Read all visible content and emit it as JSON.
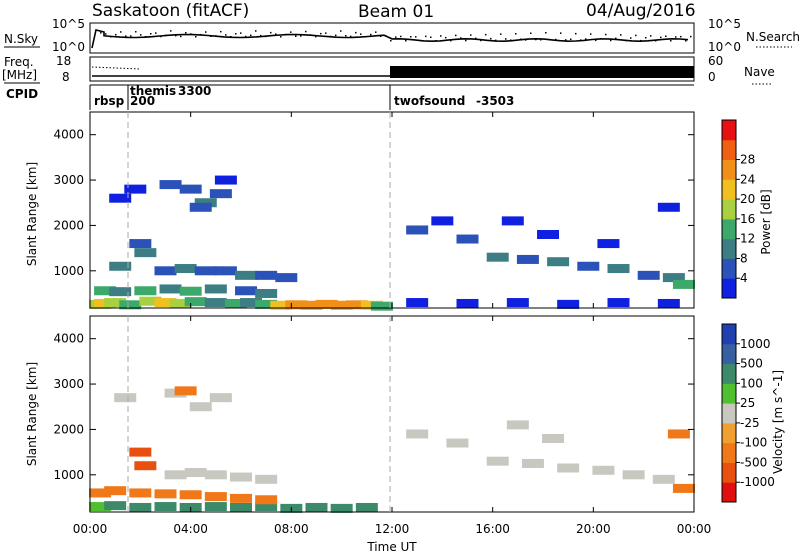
{
  "header": {
    "title": "Saskatoon (fitACF)",
    "beam": "Beam 01",
    "date": "04/Aug/2016"
  },
  "top_panels": {
    "nsky_label": "N.Sky",
    "nsearch_label": "N.Search",
    "nsky_ticks": [
      "10^5",
      "10^0"
    ],
    "nsearch_ticks": [
      "10^5",
      "10^0"
    ],
    "freq_label": "Freq.",
    "freq_unit": "[MHz]",
    "freq_ticks": [
      "18",
      "8"
    ],
    "nave_label": "Nave",
    "nave_ticks": [
      "60",
      "0"
    ],
    "cpid_label": "CPID",
    "cpid_segments": [
      {
        "name": "rbsp",
        "value": "200"
      },
      {
        "name": "themis",
        "value": "3300"
      },
      {
        "name": "twofsound",
        "value": "-3503"
      }
    ]
  },
  "chart_data": [
    {
      "type": "heatmap",
      "title": "Power",
      "ylabel": "Slant Range [km]",
      "xlabel": "",
      "xlim": [
        "00:00",
        "00:00"
      ],
      "ylim": [
        180,
        4500
      ],
      "yticks": [
        "1000",
        "2000",
        "3000",
        "4000"
      ],
      "colorbar": {
        "label": "Power [dB]",
        "ticks": [
          "4",
          "8",
          "12",
          "16",
          "20",
          "24",
          "28"
        ],
        "colors": [
          "#1020e0",
          "#2a52b8",
          "#3c7e84",
          "#3ca86a",
          "#a8d040",
          "#f0c020",
          "#f09018",
          "#f06010",
          "#e81010"
        ]
      },
      "cells": [
        {
          "t": 0.4,
          "r": 260,
          "p": 20
        },
        {
          "t": 0.6,
          "r": 280,
          "p": 24
        },
        {
          "t": 1.0,
          "r": 300,
          "p": 20
        },
        {
          "t": 1.6,
          "r": 250,
          "p": 16
        },
        {
          "t": 2.4,
          "r": 330,
          "p": 20
        },
        {
          "t": 3.0,
          "r": 300,
          "p": 24
        },
        {
          "t": 3.6,
          "r": 280,
          "p": 20
        },
        {
          "t": 4.2,
          "r": 320,
          "p": 16
        },
        {
          "t": 5.0,
          "r": 300,
          "p": 12
        },
        {
          "t": 5.8,
          "r": 280,
          "p": 16
        },
        {
          "t": 6.4,
          "r": 300,
          "p": 12
        },
        {
          "t": 7.0,
          "r": 260,
          "p": 16
        },
        {
          "t": 7.6,
          "r": 240,
          "p": 24
        },
        {
          "t": 8.2,
          "r": 250,
          "p": 28
        },
        {
          "t": 8.8,
          "r": 240,
          "p": 28
        },
        {
          "t": 9.4,
          "r": 260,
          "p": 28
        },
        {
          "t": 10.0,
          "r": 240,
          "p": 28
        },
        {
          "t": 10.6,
          "r": 250,
          "p": 28
        },
        {
          "t": 11.2,
          "r": 240,
          "p": 24
        },
        {
          "t": 11.6,
          "r": 220,
          "p": 16
        },
        {
          "t": 0.6,
          "r": 560,
          "p": 16
        },
        {
          "t": 1.2,
          "r": 540,
          "p": 12
        },
        {
          "t": 2.2,
          "r": 560,
          "p": 16
        },
        {
          "t": 3.2,
          "r": 600,
          "p": 12
        },
        {
          "t": 4.0,
          "r": 550,
          "p": 16
        },
        {
          "t": 5.0,
          "r": 600,
          "p": 12
        },
        {
          "t": 6.2,
          "r": 560,
          "p": 8
        },
        {
          "t": 7.0,
          "r": 500,
          "p": 12
        },
        {
          "t": 3.0,
          "r": 1000,
          "p": 8
        },
        {
          "t": 3.8,
          "r": 1050,
          "p": 12
        },
        {
          "t": 4.6,
          "r": 1000,
          "p": 8
        },
        {
          "t": 5.4,
          "r": 1000,
          "p": 8
        },
        {
          "t": 6.2,
          "r": 900,
          "p": 12
        },
        {
          "t": 7.0,
          "r": 900,
          "p": 8
        },
        {
          "t": 7.8,
          "r": 850,
          "p": 8
        },
        {
          "t": 1.2,
          "r": 1100,
          "p": 12
        },
        {
          "t": 2.2,
          "r": 1400,
          "p": 12
        },
        {
          "t": 2.0,
          "r": 1600,
          "p": 8
        },
        {
          "t": 1.2,
          "r": 2600,
          "p": 4
        },
        {
          "t": 1.8,
          "r": 2800,
          "p": 4
        },
        {
          "t": 3.2,
          "r": 2900,
          "p": 8
        },
        {
          "t": 4.0,
          "r": 2800,
          "p": 8
        },
        {
          "t": 4.6,
          "r": 2500,
          "p": 12
        },
        {
          "t": 5.2,
          "r": 2700,
          "p": 8
        },
        {
          "t": 5.4,
          "r": 3000,
          "p": 4
        },
        {
          "t": 4.4,
          "r": 2400,
          "p": 8
        },
        {
          "t": 13.0,
          "r": 1900,
          "p": 8
        },
        {
          "t": 14.0,
          "r": 2100,
          "p": 4
        },
        {
          "t": 15.0,
          "r": 1700,
          "p": 8
        },
        {
          "t": 16.2,
          "r": 1300,
          "p": 12
        },
        {
          "t": 17.4,
          "r": 1250,
          "p": 8
        },
        {
          "t": 18.6,
          "r": 1200,
          "p": 12
        },
        {
          "t": 19.8,
          "r": 1100,
          "p": 8
        },
        {
          "t": 21.0,
          "r": 1050,
          "p": 12
        },
        {
          "t": 22.2,
          "r": 900,
          "p": 8
        },
        {
          "t": 23.2,
          "r": 850,
          "p": 12
        },
        {
          "t": 23.6,
          "r": 700,
          "p": 16
        },
        {
          "t": 16.8,
          "r": 2100,
          "p": 4
        },
        {
          "t": 18.2,
          "r": 1800,
          "p": 4
        },
        {
          "t": 20.6,
          "r": 1600,
          "p": 4
        },
        {
          "t": 23.0,
          "r": 2400,
          "p": 4
        },
        {
          "t": 13.0,
          "r": 300,
          "p": 4
        },
        {
          "t": 15.0,
          "r": 280,
          "p": 4
        },
        {
          "t": 17.0,
          "r": 300,
          "p": 4
        },
        {
          "t": 19.0,
          "r": 260,
          "p": 4
        },
        {
          "t": 21.0,
          "r": 300,
          "p": 4
        },
        {
          "t": 23.0,
          "r": 280,
          "p": 4
        }
      ]
    },
    {
      "type": "heatmap",
      "title": "Velocity",
      "ylabel": "Slant Range [km]",
      "xlabel": "Time UT",
      "xlim": [
        "00:00",
        "00:00"
      ],
      "ylim": [
        180,
        4500
      ],
      "xticks": [
        "00:00",
        "04:00",
        "08:00",
        "12:00",
        "16:00",
        "20:00",
        "00:00"
      ],
      "yticks": [
        "1000",
        "2000",
        "3000",
        "4000"
      ],
      "colorbar": {
        "label": "Velocity [m s^-1]",
        "ticks": [
          "1000",
          "500",
          "100",
          "25",
          "-25",
          "-100",
          "-500",
          "-1000"
        ],
        "colors": [
          "#2040b0",
          "#3860a0",
          "#3c8a6a",
          "#50c030",
          "#c8c8c0",
          "#f0a030",
          "#f07818",
          "#e85010",
          "#e01010"
        ]
      },
      "cells": [
        {
          "t": 0.4,
          "r": 300,
          "v": 25
        },
        {
          "t": 1.0,
          "r": 320,
          "v": 100
        },
        {
          "t": 2.0,
          "r": 280,
          "v": 100
        },
        {
          "t": 3.0,
          "r": 300,
          "v": 100
        },
        {
          "t": 4.0,
          "r": 280,
          "v": 100
        },
        {
          "t": 5.0,
          "r": 300,
          "v": 100
        },
        {
          "t": 6.0,
          "r": 280,
          "v": 100
        },
        {
          "t": 7.0,
          "r": 300,
          "v": 100
        },
        {
          "t": 8.0,
          "r": 260,
          "v": 100
        },
        {
          "t": 9.0,
          "r": 280,
          "v": 100
        },
        {
          "t": 10.0,
          "r": 260,
          "v": 100
        },
        {
          "t": 11.0,
          "r": 280,
          "v": 100
        },
        {
          "t": 0.4,
          "r": 600,
          "v": -100
        },
        {
          "t": 1.0,
          "r": 650,
          "v": -100
        },
        {
          "t": 2.0,
          "r": 600,
          "v": -100
        },
        {
          "t": 3.0,
          "r": 580,
          "v": -100
        },
        {
          "t": 4.0,
          "r": 560,
          "v": -100
        },
        {
          "t": 5.0,
          "r": 520,
          "v": -100
        },
        {
          "t": 6.0,
          "r": 480,
          "v": -100
        },
        {
          "t": 7.0,
          "r": 450,
          "v": -100
        },
        {
          "t": 2.0,
          "r": 1500,
          "v": -500
        },
        {
          "t": 2.2,
          "r": 1200,
          "v": -500
        },
        {
          "t": 3.4,
          "r": 1000,
          "v": 0
        },
        {
          "t": 4.2,
          "r": 1050,
          "v": 0
        },
        {
          "t": 5.0,
          "r": 1000,
          "v": 0
        },
        {
          "t": 6.0,
          "r": 950,
          "v": 0
        },
        {
          "t": 7.0,
          "r": 900,
          "v": 0
        },
        {
          "t": 3.4,
          "r": 2800,
          "v": 0
        },
        {
          "t": 4.4,
          "r": 2500,
          "v": 0
        },
        {
          "t": 5.2,
          "r": 2700,
          "v": 0
        },
        {
          "t": 1.4,
          "r": 2700,
          "v": 0
        },
        {
          "t": 3.8,
          "r": 2850,
          "v": -100
        },
        {
          "t": 13.0,
          "r": 1900,
          "v": 0
        },
        {
          "t": 14.6,
          "r": 1700,
          "v": 0
        },
        {
          "t": 16.2,
          "r": 1300,
          "v": 0
        },
        {
          "t": 17.6,
          "r": 1250,
          "v": 0
        },
        {
          "t": 19.0,
          "r": 1150,
          "v": 0
        },
        {
          "t": 20.4,
          "r": 1100,
          "v": 0
        },
        {
          "t": 21.6,
          "r": 1000,
          "v": 0
        },
        {
          "t": 22.8,
          "r": 900,
          "v": 0
        },
        {
          "t": 23.6,
          "r": 700,
          "v": -100
        },
        {
          "t": 23.4,
          "r": 1900,
          "v": -100
        },
        {
          "t": 17.0,
          "r": 2100,
          "v": 0
        },
        {
          "t": 18.4,
          "r": 1800,
          "v": 0
        }
      ]
    }
  ]
}
